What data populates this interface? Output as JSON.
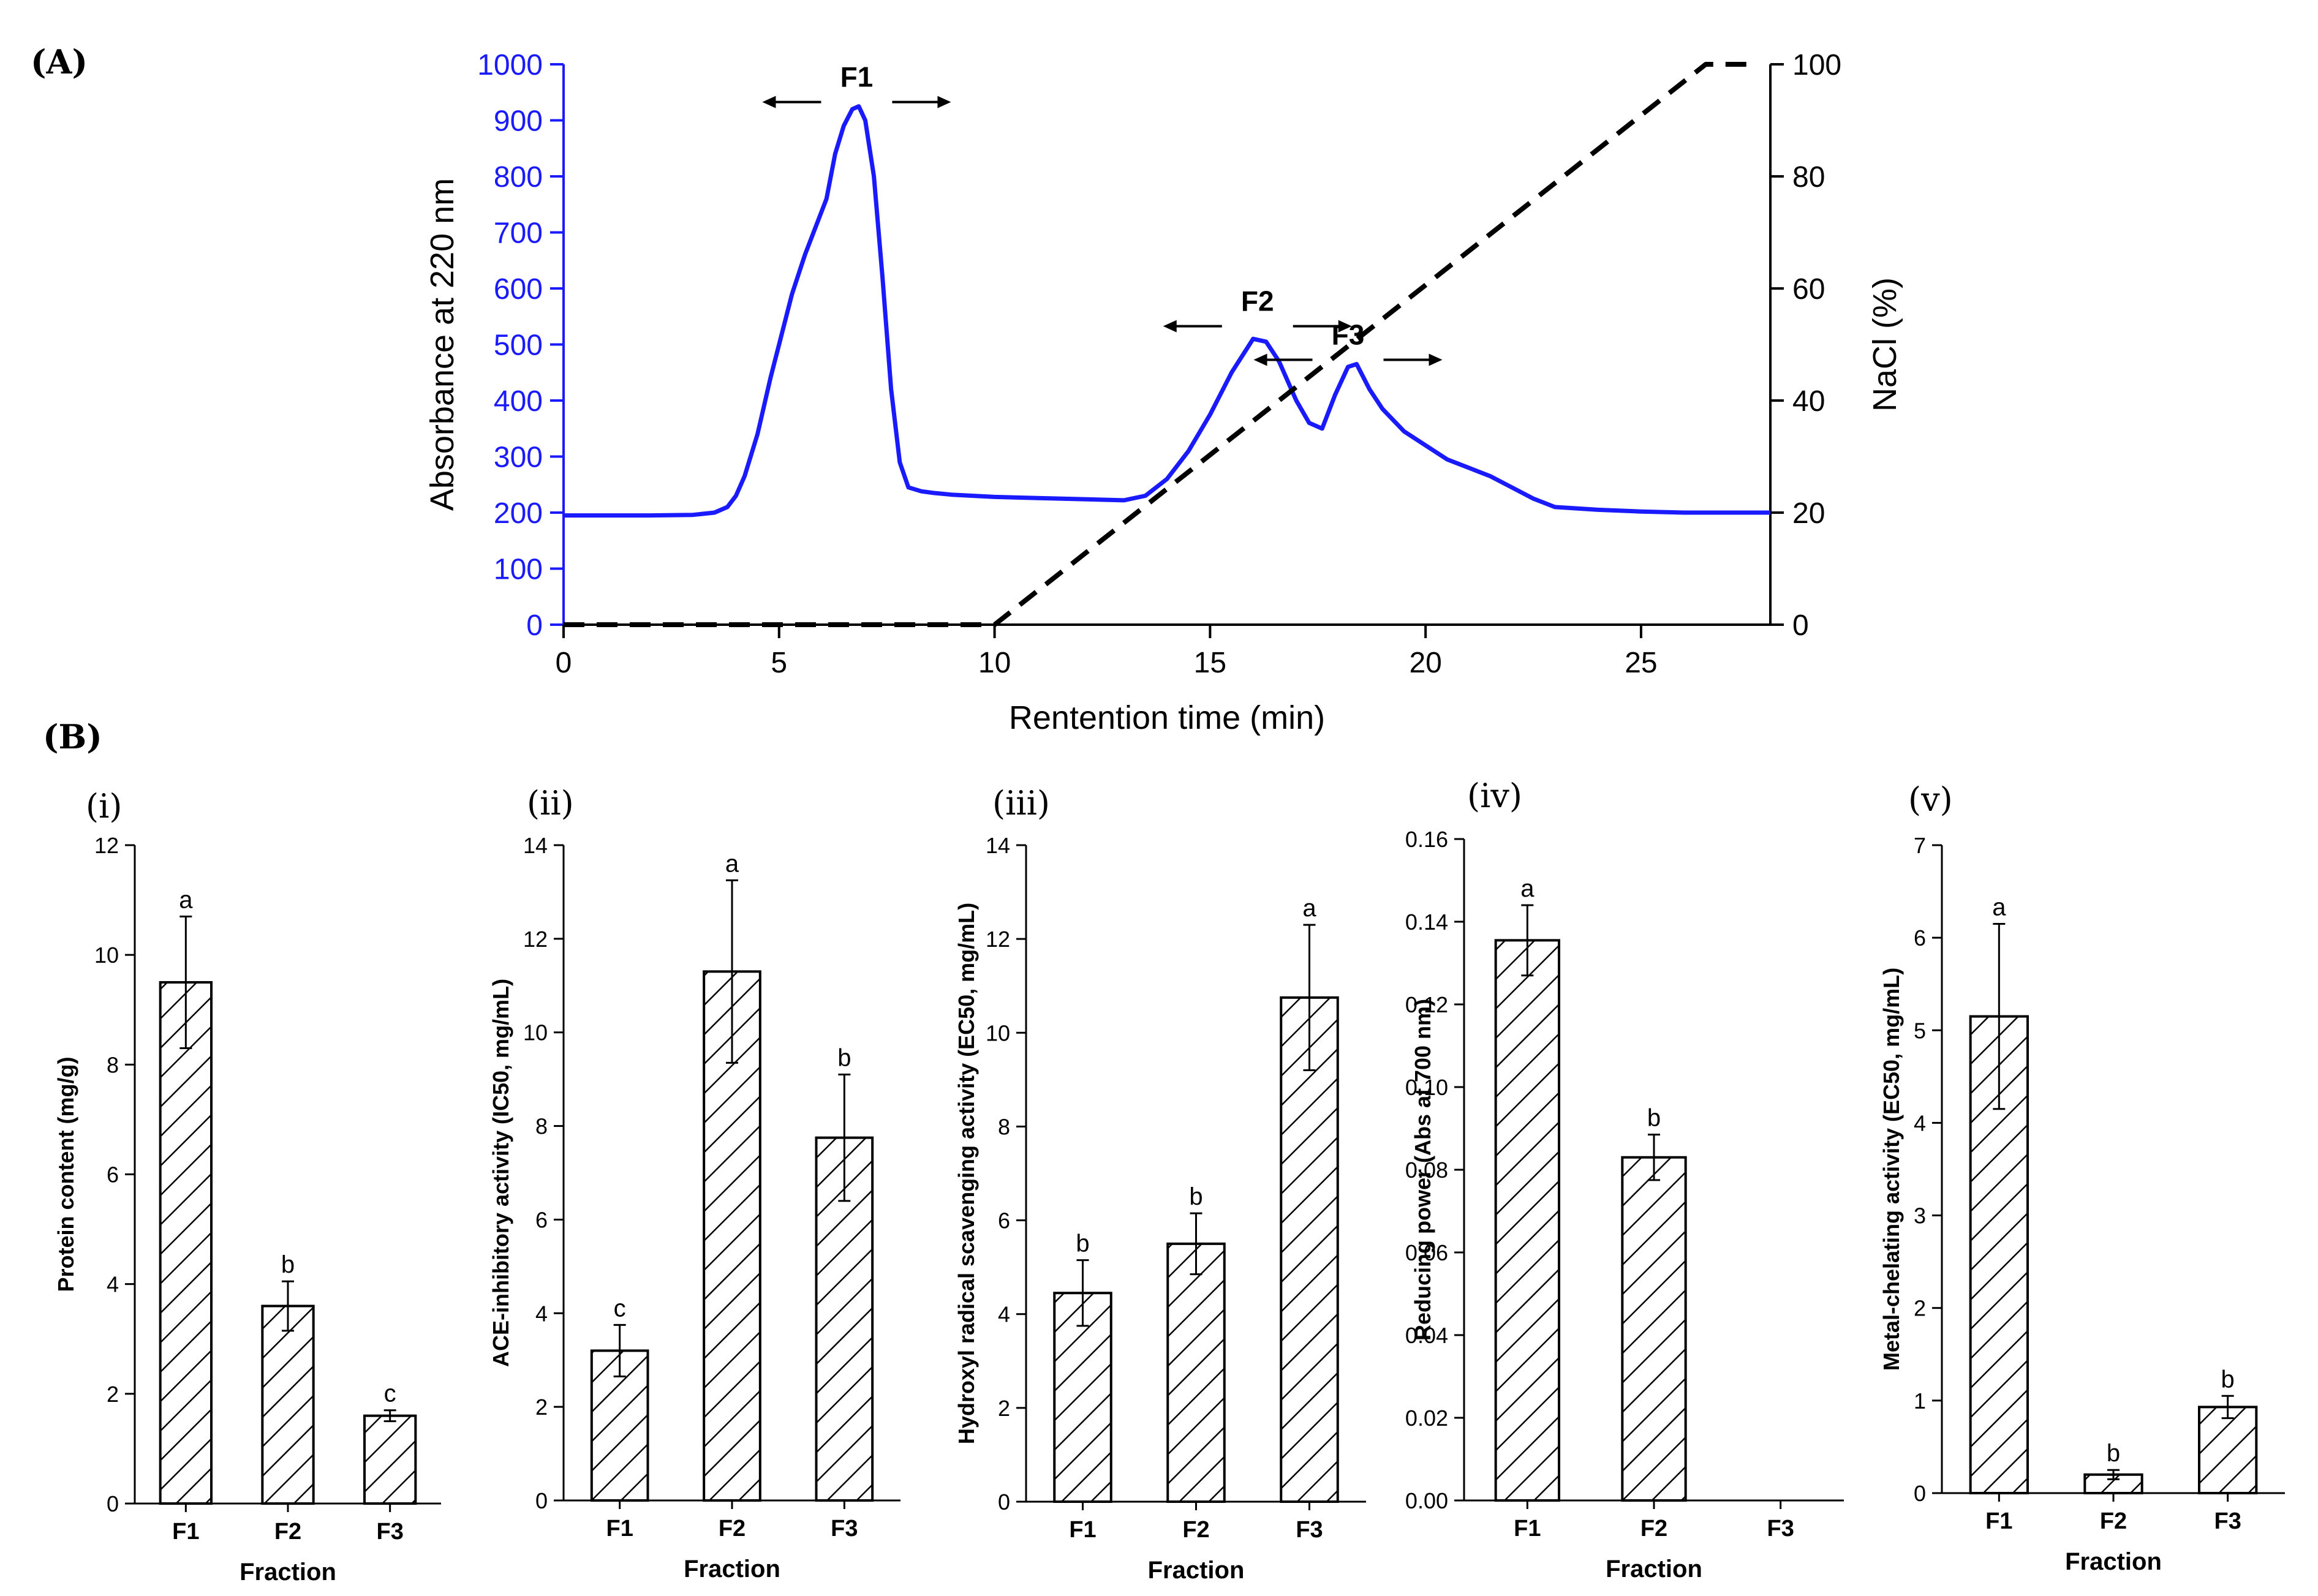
{
  "panel_a": {
    "label": "(A)",
    "colors": {
      "absorbance": "#1a1aff",
      "nacl": "#000000"
    }
  },
  "panel_b": {
    "label": "(B)",
    "colors": {
      "bar_fill": "#ffffff",
      "bar_stroke": "#000000"
    }
  },
  "chart_data": [
    {
      "id": "A",
      "type": "line",
      "xlabel": "Rentention time (min)",
      "ylabel": "Absorbance at 220 nm",
      "y2label": "NaCl (%)",
      "xlim": [
        0,
        28
      ],
      "ylim": [
        0,
        1000
      ],
      "y2lim": [
        0,
        100
      ],
      "xticks": [
        0,
        5,
        10,
        15,
        20,
        25
      ],
      "yticks": [
        0,
        100,
        200,
        300,
        400,
        500,
        600,
        700,
        800,
        900,
        1000
      ],
      "y2ticks": [
        0,
        20,
        40,
        60,
        80,
        100
      ],
      "annotations": [
        {
          "text": "F1",
          "x": 6.8,
          "y": 960
        },
        {
          "text": "F2",
          "x": 16.1,
          "y": 560
        },
        {
          "text": "F3",
          "x": 18.2,
          "y": 500
        }
      ],
      "series": [
        {
          "axis": "left",
          "style": "solid",
          "x": [
            0,
            1,
            2,
            3,
            3.5,
            3.8,
            4.0,
            4.2,
            4.5,
            4.8,
            5.0,
            5.3,
            5.6,
            5.9,
            6.1,
            6.3,
            6.5,
            6.7,
            6.85,
            7.0,
            7.2,
            7.4,
            7.6,
            7.8,
            8.0,
            8.3,
            8.6,
            9,
            10,
            11,
            12,
            13,
            13.5,
            14,
            14.5,
            15,
            15.5,
            16.0,
            16.3,
            16.6,
            17.0,
            17.3,
            17.6,
            17.9,
            18.2,
            18.4,
            18.7,
            19.0,
            19.5,
            20,
            20.5,
            21,
            21.5,
            22,
            22.5,
            23,
            24,
            25,
            26,
            27,
            28
          ],
          "y": [
            195,
            195,
            195,
            196,
            200,
            210,
            230,
            265,
            340,
            440,
            500,
            590,
            660,
            720,
            760,
            840,
            890,
            920,
            925,
            900,
            800,
            620,
            420,
            290,
            245,
            238,
            235,
            232,
            228,
            226,
            224,
            222,
            230,
            260,
            310,
            375,
            450,
            510,
            505,
            470,
            400,
            360,
            350,
            410,
            460,
            465,
            420,
            385,
            345,
            320,
            295,
            280,
            265,
            245,
            225,
            210,
            205,
            202,
            200,
            200,
            200
          ]
        },
        {
          "axis": "right",
          "style": "dashed",
          "x": [
            0,
            10,
            26.5,
            27.5
          ],
          "y": [
            0,
            0,
            100,
            100
          ]
        }
      ]
    },
    {
      "id": "i",
      "panel_label": "(i)",
      "type": "bar",
      "categories": [
        "F1",
        "F2",
        "F3"
      ],
      "values": [
        9.5,
        3.6,
        1.6
      ],
      "errors": [
        1.2,
        0.45,
        0.1
      ],
      "letters": [
        "a",
        "b",
        "c"
      ],
      "xlabel": "Fraction",
      "ylabel": "Protein content (mg/g)",
      "ylim": [
        0,
        12
      ],
      "yticks": [
        0,
        2,
        4,
        6,
        8,
        10,
        12
      ]
    },
    {
      "id": "ii",
      "panel_label": "(ii)",
      "type": "bar",
      "categories": [
        "F1",
        "F2",
        "F3"
      ],
      "values": [
        3.2,
        11.3,
        7.75
      ],
      "errors": [
        0.55,
        1.95,
        1.35
      ],
      "letters": [
        "c",
        "a",
        "b"
      ],
      "xlabel": "Fraction",
      "ylabel": "ACE-inhibitory activity (IC50, mg/mL)",
      "ylim": [
        0,
        14
      ],
      "yticks": [
        0,
        2,
        4,
        6,
        8,
        10,
        12,
        14
      ]
    },
    {
      "id": "iii",
      "panel_label": "(iii)",
      "type": "bar",
      "categories": [
        "F1",
        "F2",
        "F3"
      ],
      "values": [
        4.45,
        5.5,
        10.75
      ],
      "errors": [
        0.7,
        0.65,
        1.55
      ],
      "letters": [
        "b",
        "b",
        "a"
      ],
      "xlabel": "Fraction",
      "ylabel": "Hydroxyl radical scavenging activity (EC50, mg/mL)",
      "ylim": [
        0,
        14
      ],
      "yticks": [
        0,
        2,
        4,
        6,
        8,
        10,
        12,
        14
      ]
    },
    {
      "id": "iv",
      "panel_label": "(iv)",
      "type": "bar",
      "categories": [
        "F1",
        "F2",
        "F3"
      ],
      "values": [
        0.1355,
        0.083,
        null
      ],
      "errors": [
        0.0085,
        0.0055,
        null
      ],
      "letters": [
        "a",
        "b",
        ""
      ],
      "xlabel": "Fraction",
      "ylabel": "Reducing power (Abs at 700 nm)",
      "ylim": [
        0,
        0.16
      ],
      "yticks": [
        "0.00",
        "0.02",
        "0.04",
        "0.06",
        "0.08",
        "0.10",
        "0.12",
        "0.14",
        "0.16"
      ]
    },
    {
      "id": "v",
      "panel_label": "(v)",
      "type": "bar",
      "categories": [
        "F1",
        "F2",
        "F3"
      ],
      "values": [
        5.15,
        0.2,
        0.93
      ],
      "errors": [
        1.0,
        0.05,
        0.12
      ],
      "letters": [
        "a",
        "b",
        "b"
      ],
      "xlabel": "Fraction",
      "ylabel": "Metal-chelating activity (EC50, mg/mL)",
      "ylim": [
        0,
        7
      ],
      "yticks": [
        0,
        1,
        2,
        3,
        4,
        5,
        6,
        7
      ]
    }
  ]
}
